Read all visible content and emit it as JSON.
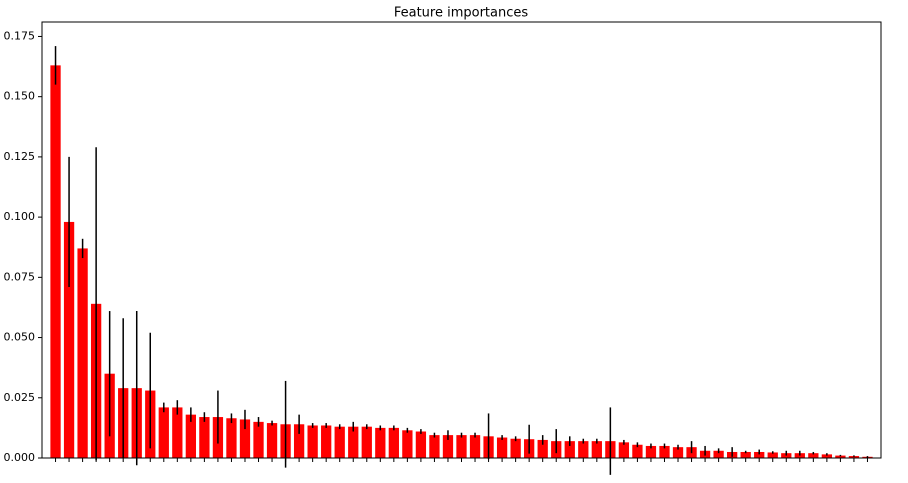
{
  "chart_data": {
    "type": "bar",
    "title": "Feature importances",
    "categories": [
      null,
      null,
      null,
      null,
      null,
      null,
      null,
      null,
      null,
      null,
      null,
      null,
      null,
      null,
      null,
      null,
      null,
      null,
      null,
      null,
      null,
      null,
      null,
      null,
      null,
      null,
      null,
      null,
      null,
      null,
      null,
      null,
      null,
      null,
      null,
      null,
      null,
      null,
      null,
      null,
      null,
      null,
      null,
      null,
      null,
      null,
      null,
      null,
      null,
      null,
      null,
      null,
      null,
      null,
      null,
      null,
      null,
      null,
      null,
      null,
      null
    ],
    "values": [
      0.163,
      0.098,
      0.087,
      0.064,
      0.035,
      0.029,
      0.029,
      0.028,
      0.021,
      0.021,
      0.018,
      0.017,
      0.017,
      0.0165,
      0.016,
      0.015,
      0.0145,
      0.014,
      0.014,
      0.0135,
      0.0135,
      0.013,
      0.013,
      0.013,
      0.0125,
      0.0125,
      0.0115,
      0.011,
      0.0095,
      0.0095,
      0.0095,
      0.0095,
      0.009,
      0.0085,
      0.008,
      0.0078,
      0.0075,
      0.007,
      0.007,
      0.007,
      0.007,
      0.007,
      0.0065,
      0.0055,
      0.005,
      0.005,
      0.0045,
      0.0045,
      0.003,
      0.003,
      0.0025,
      0.0025,
      0.0025,
      0.0023,
      0.002,
      0.002,
      0.002,
      0.0015,
      0.001,
      0.0008,
      0.0005
    ],
    "errors": [
      0.008,
      0.027,
      0.004,
      0.065,
      0.026,
      0.029,
      0.032,
      0.024,
      0.002,
      0.003,
      0.003,
      0.002,
      0.011,
      0.002,
      0.004,
      0.002,
      0.001,
      0.018,
      0.004,
      0.001,
      0.001,
      0.001,
      0.002,
      0.001,
      0.001,
      0.001,
      0.001,
      0.001,
      0.001,
      0.002,
      0.001,
      0.001,
      0.0095,
      0.001,
      0.001,
      0.006,
      0.002,
      0.005,
      0.002,
      0.001,
      0.001,
      0.014,
      0.001,
      0.001,
      0.001,
      0.001,
      0.001,
      0.0025,
      0.002,
      0.001,
      0.002,
      0.0005,
      0.001,
      0.0005,
      0.001,
      0.001,
      0.0005,
      0.0005,
      0.0003,
      0.0003,
      0.0003
    ],
    "color": "#ff0000",
    "error_color": "#000000",
    "ylim": [
      0,
      0.181
    ],
    "yticks": [
      {
        "value": 0,
        "label": "0.000"
      },
      {
        "value": 0.025,
        "label": "0.025"
      },
      {
        "value": 0.05,
        "label": "0.050"
      },
      {
        "value": 0.075,
        "label": "0.075"
      },
      {
        "value": 0.1,
        "label": "0.100"
      },
      {
        "value": 0.125,
        "label": "0.125"
      },
      {
        "value": 0.15,
        "label": "0.150"
      },
      {
        "value": 0.175,
        "label": "0.175"
      }
    ],
    "grid": false
  }
}
